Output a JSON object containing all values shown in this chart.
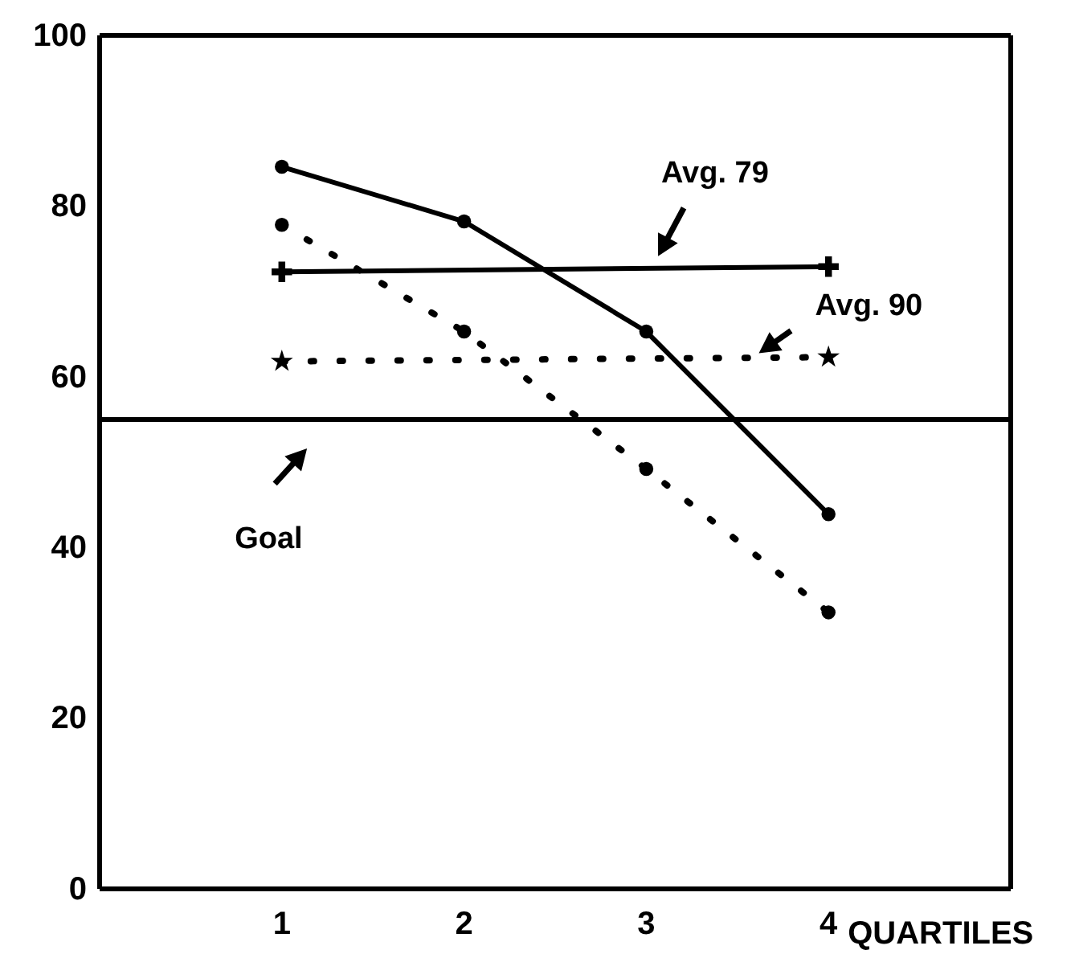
{
  "chart_data": {
    "type": "line",
    "xlabel": "QUARTILES",
    "xlim": [
      0,
      5
    ],
    "xticks": [
      1,
      2,
      3,
      4
    ],
    "ylim": [
      0,
      100
    ],
    "yticks": [
      0,
      20,
      40,
      60,
      80,
      100
    ],
    "series": [
      {
        "color": "#000000",
        "x": [
          1,
          2,
          3,
          4
        ],
        "values": [
          84.6,
          78.2,
          65.3,
          43.9
        ],
        "marker": "circle",
        "line_style": "solid"
      },
      {
        "color": "#000000",
        "x": [
          1,
          2,
          3,
          4
        ],
        "values": [
          77.8,
          65.3,
          49.2,
          32.4
        ],
        "marker": "circle",
        "line_style": "dotted"
      },
      {
        "color": "#000000",
        "x": [
          1,
          4
        ],
        "values": [
          72.3,
          72.9
        ],
        "marker": "cross",
        "line_style": "solid"
      },
      {
        "color": "#000000",
        "x": [
          1,
          4
        ],
        "values": [
          61.8,
          62.3
        ],
        "marker": "star",
        "line_style": "dotted"
      }
    ],
    "ref_lines": [
      {
        "axis": "y",
        "value": 55,
        "label": "Goal",
        "color": "#000000"
      }
    ],
    "annotations": [
      {
        "text": "Avg. 79",
        "x": 3.1,
        "y": 73
      },
      {
        "text": "Avg. 90",
        "x": 3.6,
        "y": 62
      }
    ]
  }
}
